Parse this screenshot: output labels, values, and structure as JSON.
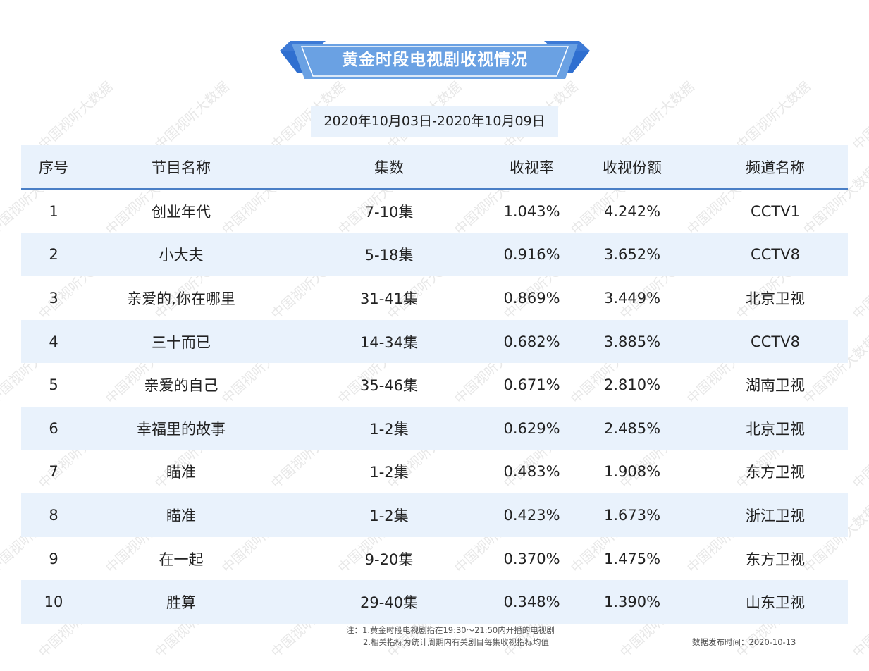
{
  "title": "黄金时段电视剧收视情况",
  "date_range": "2020年10月03日-2020年10月09日",
  "headers": [
    "序号",
    "节目名称",
    "集数",
    "收视率",
    "收视份额",
    "频道名称"
  ],
  "rows": [
    [
      "1",
      "创业年代",
      "7-10集",
      "1.043%",
      "4.242%",
      "CCTV1"
    ],
    [
      "2",
      "小大夫",
      "5-18集",
      "0.916%",
      "3.652%",
      "CCTV8"
    ],
    [
      "3",
      "亲爱的,你在哪里",
      "31-41集",
      "0.869%",
      "3.449%",
      "北京卫视"
    ],
    [
      "4",
      "三十而已",
      "14-34集",
      "0.682%",
      "3.885%",
      "CCTV8"
    ],
    [
      "5",
      "亲爱的自己",
      "35-46集",
      "0.671%",
      "2.810%",
      "湖南卫视"
    ],
    [
      "6",
      "幸福里的故事",
      "1-2集",
      "0.629%",
      "2.485%",
      "北京卫视"
    ],
    [
      "7",
      "瞄准",
      "1-2集",
      "0.483%",
      "1.908%",
      "东方卫视"
    ],
    [
      "8",
      "瞄准",
      "1-2集",
      "0.423%",
      "1.673%",
      "浙江卫视"
    ],
    [
      "9",
      "在一起",
      "9-20集",
      "0.370%",
      "1.475%",
      "东方卫视"
    ],
    [
      "10",
      "胜算",
      "29-40集",
      "0.348%",
      "1.390%",
      "山东卫视"
    ]
  ],
  "notes": {
    "line1": "注：1.黄金时段电视剧指在19:30～21:50内开播的电视剧",
    "line2": "2.相关指标为统计周期内有关剧目每集收视指标均值"
  },
  "publish_time": "数据发布时间：2020-10-13",
  "watermark": "中国视听大数据",
  "colors": {
    "banner_blue": "#5b94dd",
    "banner_dark": "#2f6fd0",
    "row_alt": "#e9f2fc",
    "header_line": "#4a7fc6"
  }
}
